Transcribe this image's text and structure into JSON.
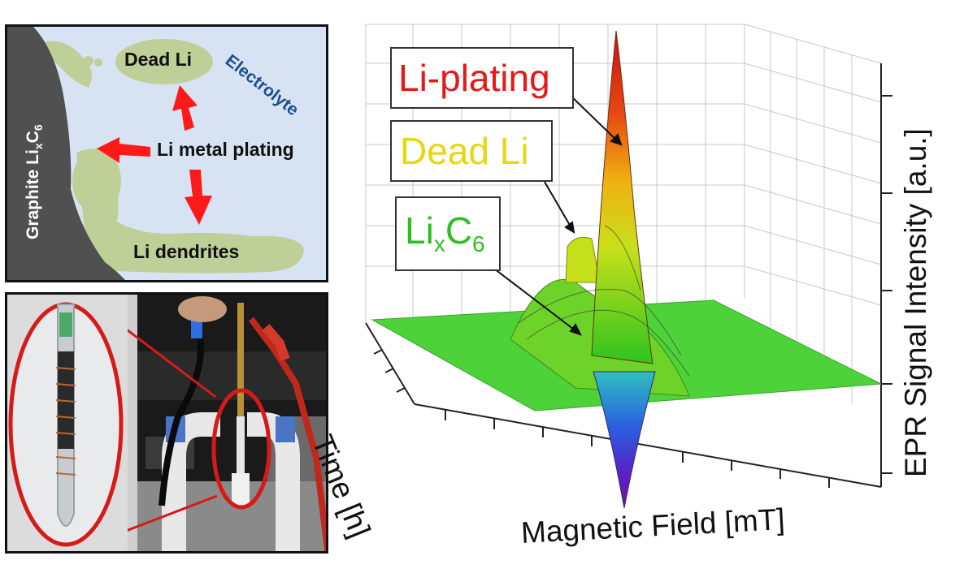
{
  "schematic": {
    "graphite_label_main": "Graphite Li",
    "graphite_label_x": "x",
    "graphite_label_c": "C",
    "graphite_label_6": "6",
    "dead_li": "Dead Li",
    "plating": "Li metal plating",
    "dendrites": "Li dendrites",
    "electrolyte": "Electrolyte",
    "colors": {
      "background": "#d7e3f3",
      "graphite": "#505050",
      "li_deposit": "#bfcf98",
      "arrow": "#ff1a1a"
    }
  },
  "epr_plot": {
    "callouts": {
      "plating": "Li-plating",
      "dead": "Dead Li",
      "lixc6_main": "Li",
      "lixc6_x": "x",
      "lixc6_c": "C",
      "lixc6_6": "6"
    },
    "axes": {
      "x_title": "Magnetic Field [mT]",
      "time_title": "Time [h]",
      "z_title": "EPR Signal Intensity [a.u.]"
    },
    "colors": {
      "plating": "#e41a1a",
      "dead": "#e6d80e",
      "lixc6": "#2bbf1f",
      "baseline": "#44d12b"
    }
  }
}
